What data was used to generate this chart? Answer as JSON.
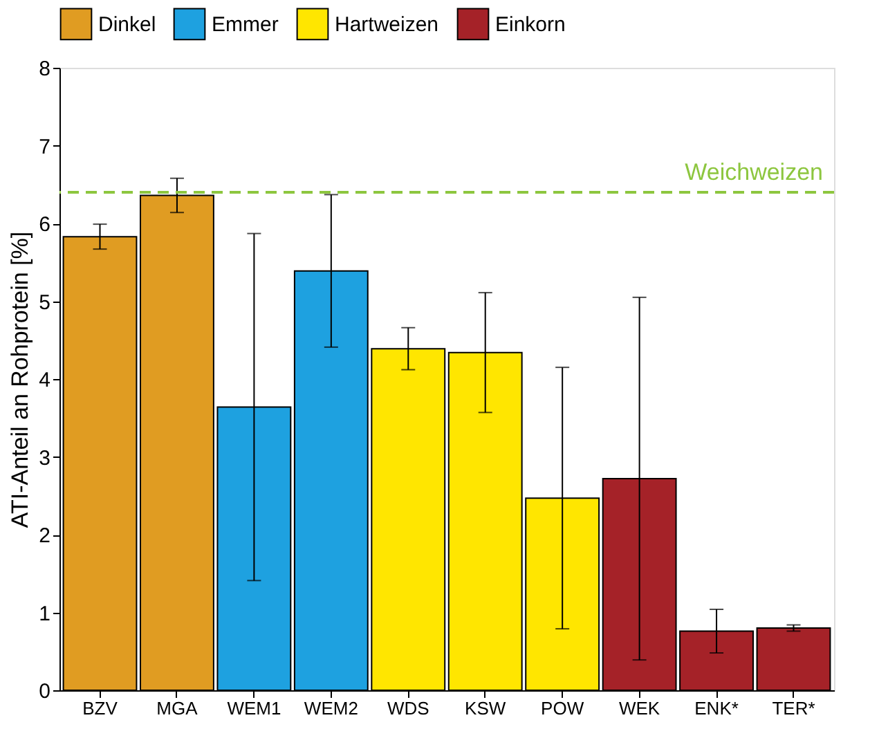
{
  "chart_data": {
    "type": "bar",
    "ylabel": "ATI-Anteil an Rohprotein [%]",
    "categories": [
      "BZV",
      "MGA",
      "WEM1",
      "WEM2",
      "WDS",
      "KSW",
      "POW",
      "WEK",
      "ENK*",
      "TER*"
    ],
    "series": [
      {
        "name": "Dinkel",
        "color": "#e09c22",
        "values": [
          5.83,
          6.36,
          null,
          null,
          null,
          null,
          null,
          null,
          null,
          null
        ],
        "errors": [
          0.16,
          0.22,
          null,
          null,
          null,
          null,
          null,
          null,
          null,
          null
        ]
      },
      {
        "name": "Emmer",
        "color": "#1ea1e0",
        "values": [
          null,
          null,
          3.64,
          5.39,
          null,
          null,
          null,
          null,
          null,
          null
        ],
        "errors": [
          null,
          null,
          2.23,
          0.98,
          null,
          null,
          null,
          null,
          null,
          null
        ]
      },
      {
        "name": "Hartweizen",
        "color": "#ffe600",
        "values": [
          null,
          null,
          null,
          null,
          4.39,
          4.34,
          2.47,
          null,
          null,
          null
        ],
        "errors": [
          null,
          null,
          null,
          null,
          0.27,
          0.77,
          1.68,
          null,
          null,
          null
        ]
      },
      {
        "name": "Einkorn",
        "color": "#a52228",
        "values": [
          null,
          null,
          null,
          null,
          null,
          null,
          null,
          2.72,
          0.76,
          0.8
        ],
        "errors": [
          null,
          null,
          null,
          null,
          null,
          null,
          null,
          2.33,
          0.28,
          0.04
        ]
      }
    ],
    "ylim": [
      0,
      8
    ],
    "yticks": [
      0,
      1,
      2,
      3,
      4,
      5,
      6,
      7,
      8
    ],
    "ref_lines": [
      {
        "axis": "y",
        "value": 6.4,
        "label": "Weichweizen",
        "color": "#8dc63f",
        "line_style": "dashed"
      }
    ],
    "legend": "top",
    "grid": false
  }
}
